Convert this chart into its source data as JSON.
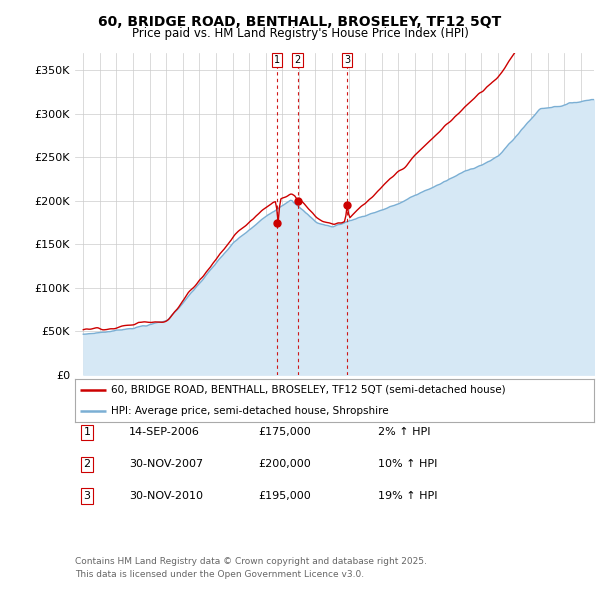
{
  "title": "60, BRIDGE ROAD, BENTHALL, BROSELEY, TF12 5QT",
  "subtitle": "Price paid vs. HM Land Registry's House Price Index (HPI)",
  "legend_line1": "60, BRIDGE ROAD, BENTHALL, BROSELEY, TF12 5QT (semi-detached house)",
  "legend_line2": "HPI: Average price, semi-detached house, Shropshire",
  "footer1": "Contains HM Land Registry data © Crown copyright and database right 2025.",
  "footer2": "This data is licensed under the Open Government Licence v3.0.",
  "transactions": [
    {
      "num": 1,
      "date": "14-SEP-2006",
      "price": "£175,000",
      "change": "2% ↑ HPI",
      "x_year": 2006.71
    },
    {
      "num": 2,
      "date": "30-NOV-2007",
      "price": "£200,000",
      "change": "10% ↑ HPI",
      "x_year": 2007.92
    },
    {
      "num": 3,
      "date": "30-NOV-2010",
      "price": "£195,000",
      "change": "19% ↑ HPI",
      "x_year": 2010.92
    }
  ],
  "hpi_line_color": "#7bafd4",
  "hpi_fill_color": "#d6e8f5",
  "price_line_color": "#cc0000",
  "vline_color": "#cc0000",
  "dot_color": "#cc0000",
  "background_color": "#ffffff",
  "grid_color": "#cccccc",
  "ylim": [
    0,
    370000
  ],
  "yticks": [
    0,
    50000,
    100000,
    150000,
    200000,
    250000,
    300000,
    350000
  ],
  "xmin": 1994.5,
  "xmax": 2025.8
}
